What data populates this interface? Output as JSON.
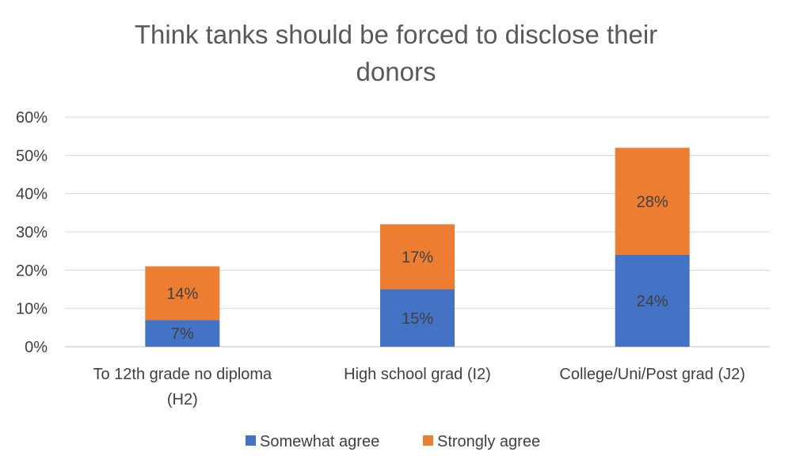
{
  "chart_data": {
    "type": "bar",
    "stacked": true,
    "title": "Think tanks should be forced to disclose their donors",
    "title_lines": [
      "Think tanks should be forced to disclose their",
      "donors"
    ],
    "categories": [
      "To 12th grade no diploma (H2)",
      "High school grad (I2)",
      "College/Uni/Post grad (J2)"
    ],
    "category_lines": [
      [
        "To 12th grade no diploma",
        "(H2)"
      ],
      [
        "High school grad (I2)"
      ],
      [
        "College/Uni/Post grad (J2)"
      ]
    ],
    "series": [
      {
        "name": "Somewhat agree",
        "values": [
          7,
          15,
          24
        ],
        "labels": [
          "7%",
          "15%",
          "24%"
        ],
        "color": "#4472C4"
      },
      {
        "name": "Strongly agree",
        "values": [
          14,
          17,
          28
        ],
        "labels": [
          "14%",
          "17%",
          "28%"
        ],
        "color": "#ED7D31"
      }
    ],
    "ylim": [
      0,
      60
    ],
    "yticks": [
      0,
      10,
      20,
      30,
      40,
      50,
      60
    ],
    "ytick_labels": [
      "0%",
      "10%",
      "20%",
      "30%",
      "40%",
      "50%",
      "60%"
    ],
    "xlabel": "",
    "ylabel": "",
    "grid": true,
    "gridline_color": "#D9D9D9",
    "legend_position": "bottom"
  }
}
